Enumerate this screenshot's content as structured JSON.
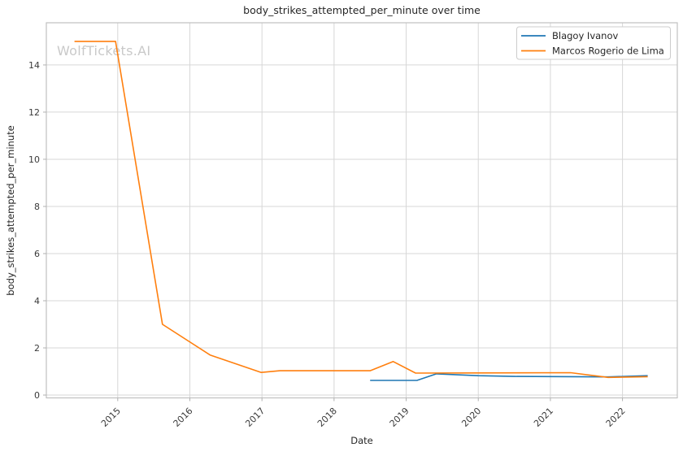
{
  "watermark": {
    "text": "WolfTickets.AI"
  },
  "chart_data": {
    "type": "line",
    "title": "body_strikes_attempted_per_minute over time",
    "xlabel": "Date",
    "ylabel": "body_strikes_attempted_per_minute",
    "xlim": [
      2014.01,
      2022.76
    ],
    "ylim": [
      -0.12,
      15.79
    ],
    "xticks": [
      2015,
      2016,
      2017,
      2018,
      2019,
      2020,
      2021,
      2022
    ],
    "yticks": [
      0,
      2,
      4,
      6,
      8,
      10,
      12,
      14
    ],
    "grid": true,
    "legend_position": "upper right",
    "colors": {
      "grid": "#d7d7d7",
      "spine": "#c0c0c0",
      "tick": "#b0b0b0",
      "tick_text": "#3a3a3a",
      "legend_border": "#cccccc",
      "background": "#ffffff"
    },
    "series": [
      {
        "name": "Blagoy Ivanov",
        "color": "#1f77b4",
        "points": [
          [
            2018.5,
            0.62
          ],
          [
            2019.15,
            0.62
          ],
          [
            2019.42,
            0.9
          ],
          [
            2020.0,
            0.82
          ],
          [
            2020.5,
            0.79
          ],
          [
            2021.3,
            0.78
          ],
          [
            2021.8,
            0.77
          ],
          [
            2022.35,
            0.82
          ]
        ]
      },
      {
        "name": "Marcos Rogerio de Lima",
        "color": "#ff7f0e",
        "points": [
          [
            2014.4,
            15.0
          ],
          [
            2014.97,
            15.0
          ],
          [
            2015.62,
            3.0
          ],
          [
            2016.28,
            1.7
          ],
          [
            2016.99,
            0.96
          ],
          [
            2017.25,
            1.03
          ],
          [
            2018.5,
            1.03
          ],
          [
            2018.82,
            1.42
          ],
          [
            2019.13,
            0.93
          ],
          [
            2020.0,
            0.94
          ],
          [
            2021.28,
            0.95
          ],
          [
            2021.8,
            0.75
          ],
          [
            2022.35,
            0.78
          ]
        ]
      }
    ]
  }
}
